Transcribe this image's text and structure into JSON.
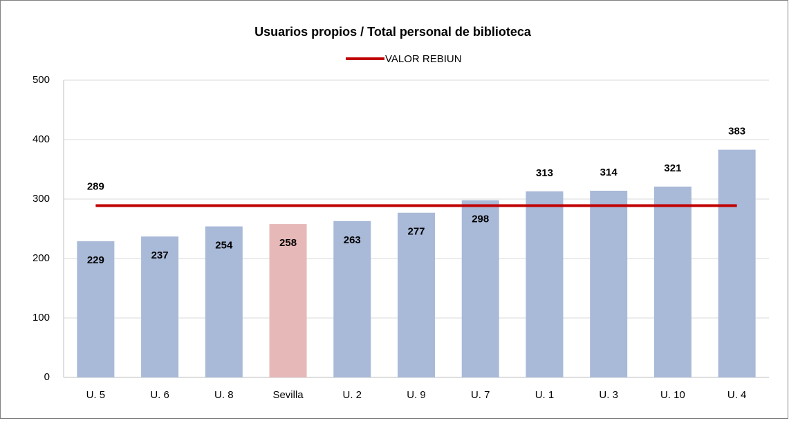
{
  "chart_data": {
    "type": "bar",
    "title": "Usuarios propios / Total personal de biblioteca",
    "categories": [
      "U. 5",
      "U. 6",
      "U. 8",
      "Sevilla",
      "U. 2",
      "U. 9",
      "U. 7",
      "U. 1",
      "U. 3",
      "U. 10",
      "U. 4"
    ],
    "values": [
      229,
      237,
      254,
      258,
      263,
      277,
      298,
      313,
      314,
      321,
      383
    ],
    "colors": [
      "#a9b9d8",
      "#a9b9d8",
      "#a9b9d8",
      "#e6b8b7",
      "#a9b9d8",
      "#a9b9d8",
      "#a9b9d8",
      "#a9b9d8",
      "#a9b9d8",
      "#a9b9d8",
      "#a9b9d8"
    ],
    "series": [
      {
        "name": "VALOR REBIUN",
        "type": "line",
        "color": "#c00000",
        "values": [
          289,
          289,
          289,
          289,
          289,
          289,
          289,
          289,
          289,
          289,
          289
        ]
      }
    ],
    "ylim": [
      0,
      500
    ],
    "yticks": [
      0,
      100,
      200,
      300,
      400,
      500
    ],
    "grid": true,
    "legend": "top"
  }
}
